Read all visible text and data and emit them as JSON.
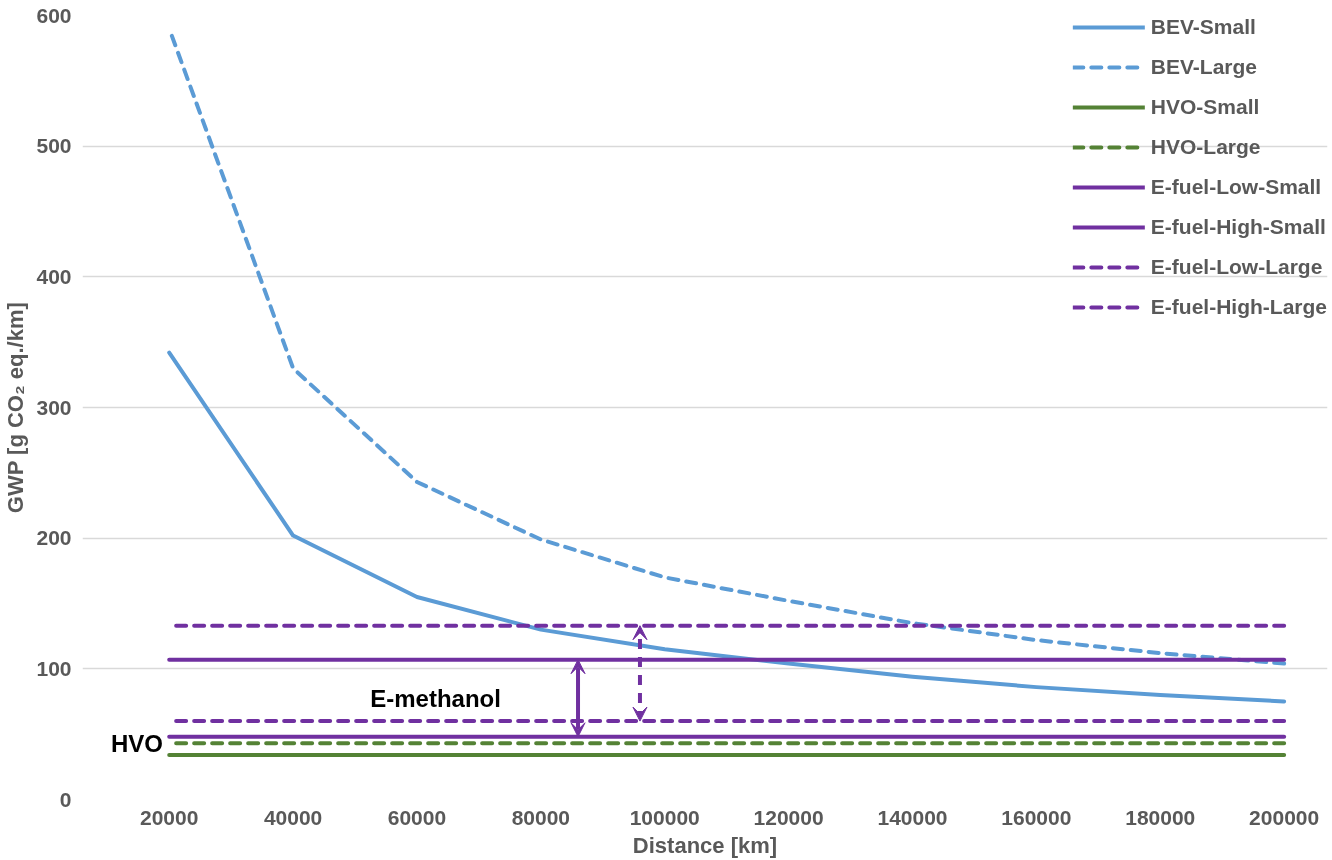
{
  "chart_data": {
    "type": "line",
    "xlabel": "Distance [km]",
    "ylabel": "GWP [g CO₂ eq./km]",
    "x": [
      20000,
      40000,
      60000,
      80000,
      100000,
      120000,
      140000,
      160000,
      180000,
      200000
    ],
    "series": [
      {
        "name": "BEV-Small",
        "color": "#5b9bd5",
        "line_style": "solid",
        "values": [
          342,
          202,
          155,
          130,
          115,
          104,
          94,
          86,
          80,
          75
        ]
      },
      {
        "name": "BEV-Large",
        "color": "#5b9bd5",
        "line_style": "dashed",
        "values": [
          590,
          330,
          243,
          199,
          170,
          152,
          135,
          122,
          112,
          104
        ]
      },
      {
        "name": "HVO-Small",
        "color": "#548235",
        "line_style": "solid",
        "values": [
          34,
          34,
          34,
          34,
          34,
          34,
          34,
          34,
          34,
          34
        ]
      },
      {
        "name": "HVO-Large",
        "color": "#548235",
        "line_style": "dashed",
        "values": [
          43,
          43,
          43,
          43,
          43,
          43,
          43,
          43,
          43,
          43
        ]
      },
      {
        "name": "E-fuel-Low-Small",
        "color": "#7030a0",
        "line_style": "solid",
        "values": [
          48,
          48,
          48,
          48,
          48,
          48,
          48,
          48,
          48,
          48
        ]
      },
      {
        "name": "E-fuel-High-Small",
        "color": "#7030a0",
        "line_style": "solid",
        "values": [
          107,
          107,
          107,
          107,
          107,
          107,
          107,
          107,
          107,
          107
        ]
      },
      {
        "name": "E-fuel-Low-Large",
        "color": "#7030a0",
        "line_style": "dashed",
        "values": [
          60,
          60,
          60,
          60,
          60,
          60,
          60,
          60,
          60,
          60
        ]
      },
      {
        "name": "E-fuel-High-Large",
        "color": "#7030a0",
        "line_style": "dashed",
        "values": [
          133,
          133,
          133,
          133,
          133,
          133,
          133,
          133,
          133,
          133
        ]
      }
    ],
    "annotations": [
      "E-methanol",
      "HVO"
    ],
    "xlim": [
      6000,
      207000
    ],
    "xticks": [
      20000,
      40000,
      60000,
      80000,
      100000,
      120000,
      140000,
      160000,
      180000,
      200000
    ],
    "ylim": [
      0,
      600
    ],
    "yticks": [
      0,
      100,
      200,
      300,
      400,
      500,
      600
    ],
    "grid": "y",
    "legend": "top right",
    "marker": "none"
  }
}
